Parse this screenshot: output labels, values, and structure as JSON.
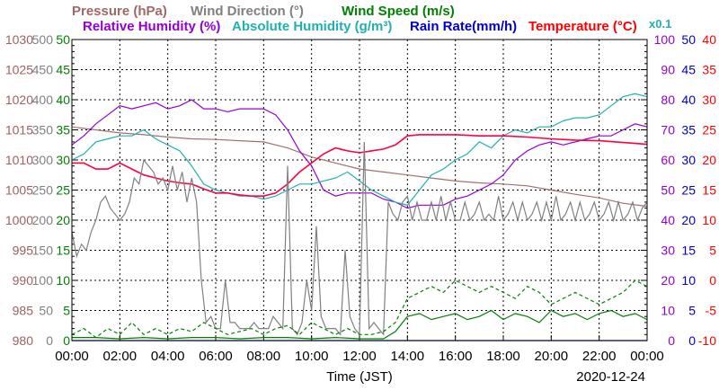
{
  "chart_data": {
    "type": "line",
    "legend_placement": "top",
    "grid": true,
    "xlabel": "Time (JST)",
    "date": "2020-12-24",
    "x_ticks": [
      "00:00",
      "02:00",
      "04:00",
      "06:00",
      "08:00",
      "10:00",
      "12:00",
      "14:00",
      "16:00",
      "18:00",
      "20:00",
      "22:00",
      "00:00"
    ],
    "x_range_hours": [
      0,
      24
    ],
    "legend": {
      "pressure": "Pressure (hPa)",
      "wind_direction": "Wind Direction (°)",
      "wind_speed": "Wind Speed (m/s)",
      "relative_humidity": "Relative Humidity (%)",
      "absolute_humidity": "Absolute Humidity (g/m³)",
      "rain_rate": "Rain Rate(mm/h)",
      "temperature": "Temperature (°C)",
      "scale_note": "x0.1"
    },
    "axes": {
      "pressure": {
        "color": "#a06060",
        "min": 980,
        "max": 1030,
        "step": 5
      },
      "wind_direction": {
        "color": "#808080",
        "min": 0,
        "max": 500,
        "step": 50
      },
      "wind_speed": {
        "color": "#008000",
        "min": 0,
        "max": 50,
        "step": 5
      },
      "relative_humidity": {
        "color": "#9400d3",
        "min": 0,
        "max": 100,
        "step": 10
      },
      "rain_rate": {
        "color": "#0000cd",
        "min": 0,
        "max": 50,
        "step": 5
      },
      "temperature": {
        "color": "#ff0000",
        "min": -10,
        "max": 40,
        "step": 5
      }
    },
    "colors": {
      "pressure": "#a07070",
      "wind_direction": "#808080",
      "wind_speed": "#008000",
      "relative_humidity": "#9400d3",
      "absolute_humidity": "#20b0b0",
      "rain_rate": "#0000cd",
      "temperature": "#ff0040"
    },
    "series": [
      {
        "key": "pressure",
        "axis": "pressure",
        "x": [
          0,
          1,
          2,
          3,
          4,
          5,
          6,
          7,
          8,
          8.5,
          9,
          10,
          11,
          12,
          13,
          14,
          15,
          16,
          17,
          18,
          19,
          20,
          21,
          22,
          23,
          24
        ],
        "values": [
          1015.5,
          1015,
          1014.5,
          1014.2,
          1013.8,
          1013.5,
          1013.4,
          1013.2,
          1013,
          1012.5,
          1012,
          1010.5,
          1009.5,
          1008.5,
          1008,
          1007.5,
          1007,
          1006.5,
          1006.2,
          1006,
          1005.7,
          1005,
          1004.3,
          1003.7,
          1002.8,
          1002.3
        ]
      },
      {
        "key": "relative_humidity",
        "axis": "relative_humidity",
        "x": [
          0,
          0.5,
          1,
          1.5,
          2,
          2.5,
          3,
          3.5,
          4,
          4.5,
          5,
          5.5,
          6,
          6.5,
          7,
          7.5,
          8,
          8.5,
          9,
          9.5,
          10,
          10.5,
          11,
          11.5,
          12,
          12.5,
          13,
          13.5,
          14,
          14.5,
          15,
          15.5,
          16,
          16.5,
          17,
          17.5,
          18,
          18.5,
          19,
          19.5,
          20,
          20.5,
          21,
          21.5,
          22,
          22.5,
          23,
          23.5,
          24
        ],
        "values": [
          65,
          68,
          72,
          75,
          78,
          77,
          78,
          79,
          77,
          78,
          80,
          77,
          77,
          76,
          77,
          77,
          77,
          75,
          70,
          63,
          58,
          50,
          48,
          49,
          49,
          49,
          47,
          46,
          44,
          45,
          45,
          45,
          47,
          48,
          50,
          52,
          55,
          60,
          63,
          65,
          66,
          65,
          66,
          67,
          68,
          68,
          70,
          72,
          71
        ]
      },
      {
        "key": "absolute_humidity",
        "axis": "relative_humidity",
        "x": [
          0,
          0.5,
          1,
          1.5,
          2,
          2.5,
          3,
          3.5,
          4,
          4.5,
          5,
          5.5,
          6,
          6.5,
          7,
          7.5,
          8,
          8.5,
          9,
          9.5,
          10,
          10.5,
          11,
          11.5,
          12,
          12.5,
          13,
          13.5,
          14,
          14.5,
          15,
          15.5,
          16,
          16.5,
          17,
          17.5,
          18,
          18.5,
          19,
          19.5,
          20,
          20.5,
          21,
          21.5,
          22,
          22.5,
          23,
          23.5,
          24
        ],
        "values": [
          60,
          62,
          66,
          67,
          68,
          68,
          70,
          67,
          65,
          63,
          58,
          52,
          50,
          49,
          48,
          48,
          47,
          48,
          50,
          52,
          52,
          53,
          54,
          56,
          53,
          50,
          48,
          46,
          45,
          50,
          55,
          57,
          60,
          62,
          66,
          64,
          68,
          70,
          69,
          71,
          71,
          73,
          74,
          74,
          75,
          78,
          81,
          82,
          81
        ]
      },
      {
        "key": "temperature",
        "axis": "temperature",
        "x": [
          0,
          0.5,
          1,
          1.5,
          2,
          2.5,
          3,
          3.5,
          4,
          4.5,
          5,
          5.5,
          6,
          6.5,
          7,
          7.5,
          8,
          8.5,
          9,
          9.5,
          10,
          10.5,
          11,
          11.5,
          12,
          12.5,
          13,
          13.5,
          14,
          14.5,
          15,
          16,
          17,
          18,
          19,
          20,
          21,
          22,
          23,
          24
        ],
        "values": [
          19.5,
          19.5,
          18.5,
          18.5,
          19.5,
          18.5,
          17.5,
          17,
          16.5,
          16.2,
          16,
          15.2,
          14.5,
          14.5,
          14.2,
          14,
          14,
          14.5,
          16,
          18,
          19.5,
          21,
          22,
          21.5,
          21.2,
          21.5,
          21.8,
          22.5,
          24,
          24.2,
          24.2,
          24.2,
          24,
          24,
          23.8,
          23.5,
          23.3,
          23.2,
          22.9,
          22.6
        ]
      },
      {
        "key": "wind_direction",
        "axis": "wind_direction",
        "x": [
          0,
          0.2,
          0.4,
          0.6,
          0.8,
          1,
          1.2,
          1.4,
          1.6,
          1.8,
          2,
          2.2,
          2.4,
          2.6,
          2.8,
          3,
          3.2,
          3.4,
          3.6,
          3.8,
          4,
          4.2,
          4.4,
          4.6,
          4.8,
          5,
          5.2,
          5.4,
          5.6,
          5.8,
          6,
          6.2,
          6.4,
          6.6,
          6.8,
          7,
          7.2,
          7.4,
          7.6,
          7.8,
          8,
          8.2,
          8.4,
          8.6,
          8.8,
          9,
          9.2,
          9.4,
          9.6,
          9.8,
          10,
          10.2,
          10.4,
          10.6,
          10.8,
          11,
          11.2,
          11.4,
          11.6,
          11.8,
          12,
          12.2,
          12.4,
          12.6,
          12.8,
          13,
          13.2,
          13.4,
          13.6,
          13.8,
          14,
          14.2,
          14.4,
          14.6,
          14.8,
          15,
          15.2,
          15.4,
          15.6,
          15.8,
          16,
          16.2,
          16.4,
          16.6,
          16.8,
          17,
          17.2,
          17.4,
          17.6,
          17.8,
          18,
          18.2,
          18.4,
          18.6,
          18.8,
          19,
          19.2,
          19.4,
          19.6,
          19.8,
          20,
          20.2,
          20.4,
          20.6,
          20.8,
          21,
          21.2,
          21.4,
          21.6,
          21.8,
          22,
          22.2,
          22.4,
          22.6,
          22.8,
          23,
          23.2,
          23.4,
          23.6,
          23.8,
          24
        ],
        "values": [
          180,
          140,
          160,
          150,
          180,
          200,
          230,
          240,
          220,
          210,
          200,
          210,
          230,
          270,
          260,
          300,
          290,
          280,
          260,
          270,
          250,
          290,
          250,
          280,
          230,
          270,
          230,
          100,
          30,
          40,
          20,
          20,
          100,
          30,
          30,
          20,
          20,
          20,
          30,
          20,
          20,
          20,
          40,
          30,
          20,
          290,
          20,
          10,
          30,
          100,
          50,
          190,
          40,
          20,
          20,
          20,
          10,
          150,
          40,
          20,
          10,
          330,
          20,
          30,
          20,
          10,
          230,
          210,
          200,
          230,
          240,
          200,
          230,
          200,
          200,
          230,
          200,
          240,
          200,
          230,
          200,
          200,
          230,
          200,
          210,
          230,
          200,
          210,
          200,
          240,
          200,
          210,
          230,
          200,
          230,
          200,
          210,
          230,
          200,
          230,
          200,
          240,
          200,
          210,
          230,
          200,
          230,
          200,
          210,
          230,
          200,
          210,
          230,
          200,
          230,
          200,
          210,
          230,
          200,
          220,
          230
        ]
      },
      {
        "key": "wind_speed",
        "axis": "wind_speed",
        "x": [
          0,
          1,
          2,
          3,
          4,
          5,
          6,
          7,
          8,
          9,
          10,
          11,
          12,
          13,
          13.5,
          14,
          14.5,
          15,
          15.5,
          16,
          16.5,
          17,
          17.5,
          18,
          18.5,
          19,
          19.5,
          20,
          20.5,
          21,
          21.5,
          22,
          22.5,
          23,
          23.5,
          24
        ],
        "values": [
          0.5,
          0.5,
          0.3,
          0.5,
          0.3,
          0.5,
          0.5,
          0.3,
          0.5,
          0.5,
          0.3,
          0.5,
          0.3,
          0.3,
          1.5,
          4,
          4.5,
          3.5,
          4,
          4.5,
          3.5,
          4,
          5,
          3.5,
          4.5,
          4,
          3,
          5,
          4,
          4.5,
          3.5,
          4.5,
          5,
          4,
          4.5,
          3.5
        ]
      },
      {
        "key": "wind_speed_gust",
        "axis": "wind_speed",
        "dashed": true,
        "x": [
          0,
          0.5,
          1,
          1.5,
          2,
          2.5,
          3,
          3.5,
          4,
          4.5,
          5,
          5.5,
          6,
          6.5,
          7,
          7.5,
          8,
          8.5,
          9,
          9.5,
          10,
          10.5,
          11,
          11.5,
          12,
          12.5,
          13,
          13.5,
          14,
          14.5,
          15,
          15.5,
          16,
          16.5,
          17,
          17.5,
          18,
          18.5,
          19,
          19.5,
          20,
          20.5,
          21,
          21.5,
          22,
          22.5,
          23,
          23.5,
          24
        ],
        "values": [
          1,
          2,
          0.5,
          2,
          1,
          3,
          1,
          2,
          1,
          2,
          1.5,
          3,
          2,
          1,
          1.5,
          2,
          1,
          2,
          2.5,
          1,
          3,
          2,
          1,
          2,
          1,
          1,
          1.5,
          3,
          7,
          8,
          9,
          8,
          10,
          9,
          8,
          9,
          8,
          7,
          9,
          8,
          6,
          7,
          8,
          7,
          6,
          7,
          8,
          10,
          9
        ]
      },
      {
        "key": "rain_rate",
        "axis": "rain_rate",
        "x": [
          0,
          24
        ],
        "values": [
          0,
          0
        ]
      }
    ]
  }
}
